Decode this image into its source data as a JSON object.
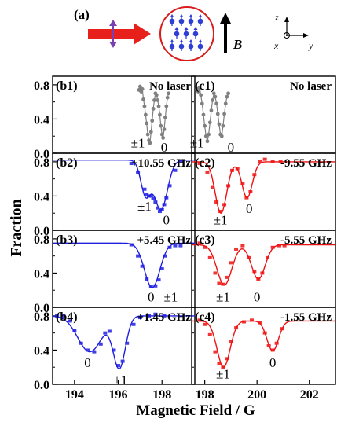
{
  "figure": {
    "top_label": "(a)",
    "field_symbol": "B",
    "axis_names": {
      "z": "z",
      "x": "x",
      "y": "y"
    },
    "ylabel": "Fraction",
    "xlabel": "Magnetic Field / G",
    "colors": {
      "laser": "#e8201c",
      "polarization": "#7b3fb5",
      "atoms": "#2d3fd6",
      "cell": "#d81b1b",
      "gray": "#808080",
      "blue": "#1f1fe0",
      "red": "#ee1111"
    }
  },
  "chart_data": [
    {
      "id": "b1",
      "panel_label": "(b1)",
      "condition": "No laser",
      "color": "gray",
      "type": "scatter",
      "xlim": [
        193,
        199.5
      ],
      "ylim": [
        0,
        0.9
      ],
      "yticks": [
        "0.0",
        "0.4",
        "0.8"
      ],
      "yticks_values": [
        0.0,
        0.4,
        0.8
      ],
      "peak_labels": [
        {
          "text": "±1",
          "x": 196.9,
          "y": 0.07
        },
        {
          "text": "0",
          "x": 198.1,
          "y": 0.02
        }
      ],
      "points": [
        [
          196.95,
          0.74
        ],
        [
          197.0,
          0.78
        ],
        [
          197.05,
          0.72
        ],
        [
          197.1,
          0.75
        ],
        [
          197.15,
          0.63
        ],
        [
          197.2,
          0.55
        ],
        [
          197.25,
          0.45
        ],
        [
          197.3,
          0.35
        ],
        [
          197.35,
          0.22
        ],
        [
          197.4,
          0.15
        ],
        [
          197.45,
          0.12
        ],
        [
          197.5,
          0.25
        ],
        [
          197.55,
          0.38
        ],
        [
          197.6,
          0.52
        ],
        [
          197.65,
          0.62
        ],
        [
          197.7,
          0.7
        ],
        [
          197.75,
          0.68
        ],
        [
          197.8,
          0.62
        ],
        [
          197.85,
          0.55
        ],
        [
          197.9,
          0.45
        ],
        [
          197.95,
          0.32
        ],
        [
          198.0,
          0.22
        ],
        [
          198.05,
          0.18
        ],
        [
          198.1,
          0.28
        ],
        [
          198.15,
          0.42
        ],
        [
          198.2,
          0.55
        ],
        [
          198.25,
          0.65
        ],
        [
          198.3,
          0.7
        ]
      ]
    },
    {
      "id": "c1",
      "panel_label": "(c1)",
      "condition": "No laser",
      "color": "gray",
      "type": "scatter",
      "xlim": [
        197.5,
        203
      ],
      "ylim": [
        0,
        0.9
      ],
      "yticks": [],
      "yticks_values": [],
      "peak_labels": [
        {
          "text": "±1",
          "x": 197.7,
          "y": 0.07
        },
        {
          "text": "0",
          "x": 199.0,
          "y": 0.02
        }
      ],
      "points": [
        [
          197.7,
          0.75
        ],
        [
          197.75,
          0.72
        ],
        [
          197.8,
          0.77
        ],
        [
          197.85,
          0.68
        ],
        [
          197.9,
          0.58
        ],
        [
          197.95,
          0.45
        ],
        [
          198.0,
          0.32
        ],
        [
          198.05,
          0.2
        ],
        [
          198.1,
          0.14
        ],
        [
          198.15,
          0.22
        ],
        [
          198.2,
          0.36
        ],
        [
          198.25,
          0.5
        ],
        [
          198.3,
          0.62
        ],
        [
          198.35,
          0.7
        ],
        [
          198.4,
          0.66
        ],
        [
          198.45,
          0.58
        ],
        [
          198.5,
          0.46
        ],
        [
          198.55,
          0.34
        ],
        [
          198.6,
          0.22
        ],
        [
          198.65,
          0.2
        ],
        [
          198.7,
          0.32
        ],
        [
          198.75,
          0.46
        ],
        [
          198.8,
          0.58
        ],
        [
          198.85,
          0.66
        ],
        [
          198.9,
          0.7
        ]
      ]
    },
    {
      "id": "b2",
      "panel_label": "(b2)",
      "condition": "+10.55 GHz",
      "color": "blue",
      "type": "scatter+fit",
      "xlim": [
        193,
        199.5
      ],
      "ylim": [
        0,
        0.9
      ],
      "yticks": [
        "0.0",
        "0.4",
        "0.8"
      ],
      "yticks_values": [
        0.0,
        0.4,
        0.8
      ],
      "peak_labels": [
        {
          "text": "±1",
          "x": 197.2,
          "y": 0.23
        },
        {
          "text": "0",
          "x": 198.2,
          "y": 0.07
        }
      ],
      "points": [
        [
          196.6,
          0.78
        ],
        [
          196.9,
          0.68
        ],
        [
          197.2,
          0.48
        ],
        [
          197.3,
          0.42
        ],
        [
          197.4,
          0.4
        ],
        [
          197.5,
          0.4
        ],
        [
          197.6,
          0.37
        ],
        [
          197.7,
          0.33
        ],
        [
          197.8,
          0.26
        ],
        [
          197.9,
          0.22
        ],
        [
          198.0,
          0.24
        ],
        [
          198.1,
          0.3
        ],
        [
          198.2,
          0.38
        ],
        [
          198.35,
          0.52
        ],
        [
          198.6,
          0.7
        ],
        [
          198.9,
          0.8
        ]
      ],
      "fit": {
        "baseline": 0.82,
        "dips": [
          {
            "center": 197.25,
            "depth": 0.4,
            "sigma": 0.22
          },
          {
            "center": 197.95,
            "depth": 0.58,
            "sigma": 0.3
          }
        ]
      }
    },
    {
      "id": "c2",
      "panel_label": "(c2)",
      "condition": "-9.55 GHz",
      "color": "red",
      "type": "scatter+fit",
      "xlim": [
        197.5,
        203
      ],
      "ylim": [
        0,
        0.9
      ],
      "yticks": [],
      "yticks_values": [],
      "peak_labels": [
        {
          "text": "±1",
          "x": 198.6,
          "y": 0.07
        },
        {
          "text": "0",
          "x": 199.7,
          "y": 0.2
        }
      ],
      "points": [
        [
          197.8,
          0.78
        ],
        [
          198.1,
          0.68
        ],
        [
          198.3,
          0.5
        ],
        [
          198.45,
          0.33
        ],
        [
          198.6,
          0.22
        ],
        [
          198.75,
          0.3
        ],
        [
          198.9,
          0.52
        ],
        [
          199.05,
          0.7
        ],
        [
          199.25,
          0.72
        ],
        [
          199.45,
          0.55
        ],
        [
          199.6,
          0.38
        ],
        [
          199.75,
          0.45
        ],
        [
          199.9,
          0.65
        ],
        [
          200.1,
          0.8
        ],
        [
          200.3,
          0.83
        ],
        [
          200.6,
          0.8
        ],
        [
          200.9,
          0.8
        ]
      ],
      "fit": {
        "baseline": 0.8,
        "dips": [
          {
            "center": 198.62,
            "depth": 0.6,
            "sigma": 0.22
          },
          {
            "center": 199.62,
            "depth": 0.42,
            "sigma": 0.2
          }
        ]
      }
    },
    {
      "id": "b3",
      "panel_label": "(b3)",
      "condition": "+5.45 GHz",
      "color": "blue",
      "type": "scatter+fit",
      "xlim": [
        193,
        199.5
      ],
      "ylim": [
        0,
        0.9
      ],
      "yticks": [
        "0.0",
        "0.4",
        "0.8"
      ],
      "yticks_values": [
        0.0,
        0.4,
        0.8
      ],
      "peak_labels": [
        {
          "text": "0",
          "x": 197.5,
          "y": 0.07
        },
        {
          "text": "±1",
          "x": 198.4,
          "y": 0.07
        }
      ],
      "points": [
        [
          196.6,
          0.73
        ],
        [
          196.9,
          0.6
        ],
        [
          197.1,
          0.48
        ],
        [
          197.3,
          0.33
        ],
        [
          197.5,
          0.24
        ],
        [
          197.7,
          0.25
        ],
        [
          197.85,
          0.32
        ],
        [
          198.0,
          0.45
        ],
        [
          198.15,
          0.6
        ],
        [
          198.35,
          0.7
        ],
        [
          198.6,
          0.72
        ],
        [
          198.85,
          0.72
        ]
      ],
      "fit": {
        "baseline": 0.75,
        "dips": [
          {
            "center": 197.55,
            "depth": 0.52,
            "sigma": 0.35
          }
        ]
      }
    },
    {
      "id": "c3",
      "panel_label": "(c3)",
      "condition": "-5.55 GHz",
      "color": "red",
      "type": "scatter+fit",
      "xlim": [
        197.5,
        203
      ],
      "ylim": [
        0,
        0.9
      ],
      "yticks": [],
      "yticks_values": [],
      "peak_labels": [
        {
          "text": "±1",
          "x": 198.7,
          "y": 0.07
        },
        {
          "text": "0",
          "x": 200.0,
          "y": 0.07
        }
      ],
      "points": [
        [
          197.8,
          0.75
        ],
        [
          198.0,
          0.7
        ],
        [
          198.2,
          0.58
        ],
        [
          198.4,
          0.4
        ],
        [
          198.55,
          0.28
        ],
        [
          198.7,
          0.27
        ],
        [
          198.85,
          0.35
        ],
        [
          199.0,
          0.52
        ],
        [
          199.2,
          0.68
        ],
        [
          199.45,
          0.72
        ],
        [
          199.7,
          0.58
        ],
        [
          199.9,
          0.42
        ],
        [
          200.05,
          0.33
        ],
        [
          200.2,
          0.4
        ],
        [
          200.4,
          0.58
        ],
        [
          200.6,
          0.7
        ],
        [
          200.85,
          0.72
        ],
        [
          201.05,
          0.72
        ]
      ],
      "fit": {
        "baseline": 0.73,
        "dips": [
          {
            "center": 198.75,
            "depth": 0.47,
            "sigma": 0.28
          },
          {
            "center": 200.05,
            "depth": 0.4,
            "sigma": 0.26
          }
        ]
      }
    },
    {
      "id": "b4",
      "panel_label": "(b4)",
      "condition": "+1.45 GHz",
      "color": "blue",
      "type": "scatter+fit",
      "xlim": [
        193,
        199.5
      ],
      "ylim": [
        0,
        0.9
      ],
      "yticks": [
        "0.0",
        "0.4",
        "0.8"
      ],
      "yticks_values": [
        0.0,
        0.4,
        0.8
      ],
      "xticks": [
        "194",
        "196",
        "198"
      ],
      "xticks_values": [
        194,
        196,
        198
      ],
      "peak_labels": [
        {
          "text": "0",
          "x": 194.6,
          "y": 0.2
        },
        {
          "text": "±1",
          "x": 196.1,
          "y": 0.0
        }
      ],
      "points": [
        [
          193.2,
          0.8
        ],
        [
          193.5,
          0.8
        ],
        [
          193.8,
          0.74
        ],
        [
          194.0,
          0.63
        ],
        [
          194.3,
          0.48
        ],
        [
          194.6,
          0.4
        ],
        [
          194.9,
          0.38
        ],
        [
          195.2,
          0.47
        ],
        [
          195.4,
          0.6
        ],
        [
          195.6,
          0.62
        ],
        [
          195.8,
          0.4
        ],
        [
          196.0,
          0.22
        ],
        [
          196.2,
          0.27
        ],
        [
          196.4,
          0.48
        ],
        [
          196.7,
          0.7
        ],
        [
          197.0,
          0.78
        ],
        [
          197.4,
          0.8
        ],
        [
          197.7,
          0.82
        ],
        [
          198.1,
          0.8
        ]
      ],
      "fit": {
        "baseline": 0.8,
        "dips": [
          {
            "center": 194.7,
            "depth": 0.42,
            "sigma": 0.55
          },
          {
            "center": 196.05,
            "depth": 0.6,
            "sigma": 0.28
          }
        ]
      }
    },
    {
      "id": "c4",
      "panel_label": "(c4)",
      "condition": "-1.55 GHz",
      "color": "red",
      "type": "scatter+fit",
      "xlim": [
        197.5,
        203
      ],
      "ylim": [
        0,
        0.9
      ],
      "yticks": [],
      "yticks_values": [],
      "xticks": [
        "198",
        "200",
        "202"
      ],
      "xticks_values": [
        198,
        200,
        202
      ],
      "peak_labels": [
        {
          "text": "±1",
          "x": 198.7,
          "y": 0.07
        },
        {
          "text": "0",
          "x": 200.6,
          "y": 0.2
        }
      ],
      "points": [
        [
          197.8,
          0.75
        ],
        [
          198.0,
          0.7
        ],
        [
          198.2,
          0.58
        ],
        [
          198.4,
          0.38
        ],
        [
          198.55,
          0.24
        ],
        [
          198.7,
          0.2
        ],
        [
          198.85,
          0.3
        ],
        [
          199.0,
          0.5
        ],
        [
          199.2,
          0.66
        ],
        [
          199.5,
          0.73
        ],
        [
          199.8,
          0.75
        ],
        [
          200.1,
          0.72
        ],
        [
          200.3,
          0.6
        ],
        [
          200.45,
          0.45
        ],
        [
          200.6,
          0.4
        ],
        [
          200.75,
          0.48
        ],
        [
          200.95,
          0.65
        ]
      ],
      "fit": {
        "baseline": 0.74,
        "dips": [
          {
            "center": 198.72,
            "depth": 0.54,
            "sigma": 0.25
          },
          {
            "center": 200.6,
            "depth": 0.35,
            "sigma": 0.22
          }
        ]
      }
    }
  ]
}
